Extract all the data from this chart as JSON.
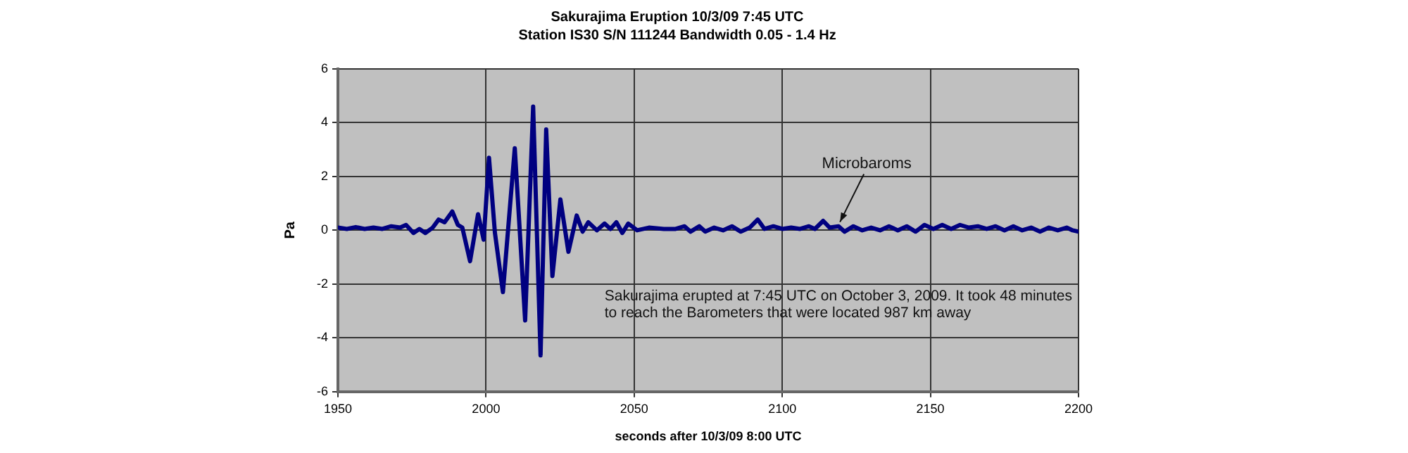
{
  "chart_data": {
    "type": "line",
    "title": "Sakurajima Eruption 10/3/09 7:45 UTC",
    "subtitle": "Station IS30 S/N 111244 Bandwidth 0.05 - 1.4 Hz",
    "xlabel": "seconds after 10/3/09 8:00 UTC",
    "ylabel": "Pa",
    "x": [
      1950,
      1953,
      1956,
      1959,
      1962,
      1965,
      1968,
      1971,
      1973,
      1975.5,
      1977.5,
      1979.5,
      1982,
      1984,
      1986,
      1988.6,
      1990.5,
      1992,
      1994.6,
      1997.3,
      1999.2,
      2001,
      2003,
      2005.7,
      2009.7,
      2013.2,
      2015.9,
      2018.4,
      2020.3,
      2022.4,
      2025.1,
      2027.8,
      2030.6,
      2032.6,
      2034.5,
      2037.4,
      2040,
      2042,
      2044,
      2046,
      2048,
      2051,
      2055,
      2060,
      2064,
      2067,
      2069,
      2072,
      2074,
      2077,
      2080,
      2083,
      2086,
      2089,
      2091.7,
      2094,
      2097,
      2100,
      2103,
      2106,
      2109,
      2111,
      2113.8,
      2116,
      2119,
      2121,
      2124,
      2127,
      2130,
      2133,
      2136,
      2139,
      2142,
      2145,
      2148,
      2151,
      2154,
      2157,
      2160,
      2163,
      2166,
      2169,
      2172,
      2175,
      2178,
      2181,
      2184,
      2187,
      2190,
      2193,
      2196,
      2198,
      2200
    ],
    "series": [
      {
        "color": "#000080",
        "values": [
          0.1,
          0.05,
          0.12,
          0.05,
          0.1,
          0.05,
          0.15,
          0.1,
          0.2,
          -0.1,
          0.05,
          -0.1,
          0.1,
          0.4,
          0.3,
          0.7,
          0.2,
          0.1,
          -1.15,
          0.6,
          -0.35,
          2.7,
          -0.1,
          -2.3,
          3.05,
          -3.35,
          4.6,
          -4.65,
          3.75,
          -1.7,
          1.15,
          -0.8,
          0.55,
          -0.05,
          0.3,
          0,
          0.25,
          0.05,
          0.3,
          -0.1,
          0.25,
          0,
          0.1,
          0.05,
          0.05,
          0.15,
          -0.05,
          0.15,
          -0.05,
          0.1,
          0,
          0.15,
          -0.05,
          0.1,
          0.4,
          0.05,
          0.15,
          0.05,
          0.1,
          0.05,
          0.15,
          0.05,
          0.35,
          0.1,
          0.15,
          -0.05,
          0.15,
          0,
          0.1,
          0,
          0.15,
          0,
          0.15,
          -0.05,
          0.2,
          0.05,
          0.2,
          0.05,
          0.2,
          0.1,
          0.15,
          0.05,
          0.15,
          0,
          0.15,
          0,
          0.1,
          -0.05,
          0.1,
          0,
          0.1,
          0,
          -0.05
        ]
      }
    ],
    "xlim": [
      1950,
      2200
    ],
    "xticks": [
      1950,
      2000,
      2050,
      2100,
      2150,
      2200
    ],
    "ylim": [
      -6,
      6
    ],
    "yticks": [
      -6,
      -4,
      -2,
      0,
      2,
      4,
      6
    ],
    "grid": true,
    "marker": "none",
    "line_style": "solid",
    "annotations": [
      {
        "text": "Microbaroms",
        "x": 2119,
        "y": 0.1
      },
      "Sakurajima erupted at 7:45 UTC on October 3, 2009. It took 48 minutes to reach the Barometers that were located 987 km away"
    ]
  }
}
